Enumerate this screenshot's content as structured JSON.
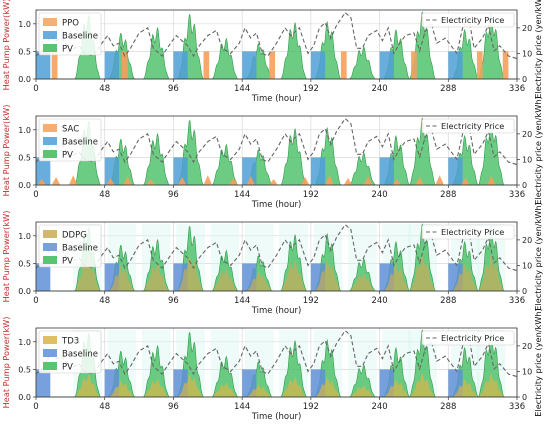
{
  "chart_data": [
    {
      "type": "area",
      "legend": [
        "PPO",
        "Baseline",
        "PV"
      ],
      "legend_right": "Electricity Price",
      "legend_placement": "top-left / top-right",
      "xlabel": "Time (hour)",
      "ylabel_left": "Heat Pump Power(kW)",
      "ylabel_right": "Electricity price (yen/kWh)",
      "xlim": [
        0,
        336
      ],
      "ylim_left": [
        0,
        1.25
      ],
      "ylim_right": [
        0,
        27
      ],
      "xticks": [
        "0",
        "48",
        "96",
        "144",
        "192",
        "240",
        "288",
        "336"
      ],
      "yticks_left": [
        "0.0",
        "0.5",
        "1.0"
      ],
      "yticks_right": [
        "0",
        "10",
        "20"
      ],
      "grid": true,
      "colors": {
        "agent": "#f5a05a",
        "baseline": "#4f9fd6",
        "pv": "#3cbb5a",
        "price": "#666666"
      },
      "agent_series": {
        "name": "PPO",
        "style": "blocks",
        "x": [
          11,
          60,
          117,
          163,
          213,
          262,
          308,
          326
        ],
        "width": 4,
        "value": 0.5
      }
    },
    {
      "type": "area",
      "legend": [
        "SAC",
        "Baseline",
        "PV"
      ],
      "legend_right": "Electricity Price",
      "legend_placement": "top-left / top-right",
      "xlabel": "Time (hour)",
      "ylabel_left": "Heat Pump Power(kW)",
      "ylabel_right": "Electricity price (yen/kWh)",
      "xlim": [
        0,
        336
      ],
      "ylim_left": [
        0,
        1.25
      ],
      "ylim_right": [
        0,
        27
      ],
      "xticks": [
        "0",
        "48",
        "96",
        "144",
        "192",
        "240",
        "288",
        "336"
      ],
      "yticks_left": [
        "0.0",
        "0.5",
        "1.0"
      ],
      "yticks_right": [
        "0",
        "10",
        "20"
      ],
      "grid": true,
      "colors": {
        "agent": "#f5a05a",
        "baseline": "#4f9fd6",
        "pv": "#3cbb5a",
        "price": "#666666"
      },
      "agent_series": {
        "name": "SAC",
        "style": "spikes",
        "x": [
          4,
          14,
          26,
          52,
          64,
          80,
          102,
          120,
          138,
          150,
          166,
          188,
          205,
          218,
          232,
          252,
          268,
          282,
          300,
          318
        ],
        "value": 0.18
      }
    },
    {
      "type": "area",
      "legend": [
        "DDPG",
        "Baseline",
        "PV"
      ],
      "legend_right": "Electricity Price",
      "legend_placement": "top-left / top-right",
      "xlabel": "Time (hour)",
      "ylabel_left": "Heat Pump Power(kW)",
      "ylabel_right": "Electricity price (yen/kWh)",
      "xlim": [
        0,
        336
      ],
      "ylim_left": [
        0,
        1.25
      ],
      "ylim_right": [
        0,
        27
      ],
      "xticks": [
        "0",
        "48",
        "96",
        "144",
        "192",
        "240",
        "288",
        "336"
      ],
      "yticks_left": [
        "0.0",
        "0.5",
        "1.0"
      ],
      "yticks_right": [
        "0",
        "10",
        "20"
      ],
      "grid": true,
      "colors": {
        "agent": "#c8ab5a",
        "baseline": "#5f8fd6",
        "pv": "#3cbb5a",
        "price": "#666666"
      },
      "agent_series": {
        "name": "DDPG",
        "style": "pv_shadow",
        "factor": 0.55
      }
    },
    {
      "type": "area",
      "legend": [
        "TD3",
        "Baseline",
        "PV"
      ],
      "legend_right": "Electricity Price",
      "legend_placement": "top-left / top-right",
      "xlabel": "Time (hour)",
      "ylabel_left": "Heat Pump Power(kW)",
      "ylabel_right": "Electricity price (yen/kWh)",
      "xlim": [
        0,
        336
      ],
      "ylim_left": [
        0,
        1.25
      ],
      "ylim_right": [
        0,
        27
      ],
      "xticks": [
        "0",
        "48",
        "96",
        "144",
        "192",
        "240",
        "288",
        "336"
      ],
      "yticks_left": [
        "0.0",
        "0.5",
        "1.0"
      ],
      "yticks_right": [
        "0",
        "10",
        "20"
      ],
      "grid": true,
      "colors": {
        "agent": "#d9b44a",
        "baseline": "#5f8fd6",
        "pv": "#3cbb5a",
        "price": "#666666"
      },
      "agent_series": {
        "name": "TD3",
        "style": "pv_shadow",
        "factor": 0.35
      }
    }
  ],
  "shared_series": {
    "baseline": {
      "name": "Baseline",
      "windows": [
        [
          0,
          10
        ],
        [
          48,
          58
        ],
        [
          96,
          106
        ],
        [
          144,
          154
        ],
        [
          192,
          202
        ],
        [
          240,
          250
        ],
        [
          288,
          298
        ]
      ],
      "value": 0.5
    },
    "pv": {
      "name": "PV",
      "days": [
        {
          "center": 36,
          "peak": 1.18
        },
        {
          "center": 60,
          "peak": 0.85
        },
        {
          "center": 84,
          "peak": 0.95
        },
        {
          "center": 108,
          "peak": 1.2
        },
        {
          "center": 132,
          "peak": 0.75
        },
        {
          "center": 156,
          "peak": 0.65
        },
        {
          "center": 180,
          "peak": 1.05
        },
        {
          "center": 204,
          "peak": 1.05
        },
        {
          "center": 228,
          "peak": 0.6
        },
        {
          "center": 252,
          "peak": 0.9
        },
        {
          "center": 270,
          "peak": 1.22
        },
        {
          "center": 300,
          "peak": 0.9
        },
        {
          "center": 318,
          "peak": 1.2
        }
      ],
      "half_width": 9
    },
    "price": {
      "name": "Electricity Price",
      "x": [
        0,
        6,
        10,
        14,
        18,
        24,
        30,
        34,
        40,
        46,
        50,
        54,
        58,
        62,
        66,
        72,
        78,
        82,
        88,
        94,
        98,
        102,
        106,
        110,
        114,
        120,
        126,
        130,
        136,
        142,
        146,
        150,
        154,
        158,
        162,
        168,
        174,
        178,
        184,
        190,
        194,
        198,
        202,
        206,
        210,
        216,
        220,
        224,
        228,
        232,
        238,
        242,
        246,
        250,
        254,
        258,
        264,
        268,
        272,
        276,
        280,
        286,
        290,
        294,
        298,
        302,
        306,
        312,
        316,
        320,
        324,
        330,
        336
      ],
      "y": [
        9,
        12,
        17,
        15,
        16,
        11,
        13,
        10,
        9,
        14,
        17,
        13,
        14,
        9,
        12,
        18,
        20,
        12,
        9,
        14,
        17,
        15,
        13,
        9,
        13,
        17,
        19,
        12,
        10,
        14,
        20,
        16,
        18,
        10,
        9,
        14,
        20,
        17,
        20,
        10,
        13,
        20,
        22,
        16,
        21,
        26,
        24,
        12,
        12,
        17,
        19,
        15,
        20,
        10,
        14,
        17,
        18,
        11,
        19,
        22,
        14,
        16,
        13,
        10,
        20,
        25,
        12,
        16,
        21,
        11,
        13,
        9,
        8
      ]
    }
  }
}
